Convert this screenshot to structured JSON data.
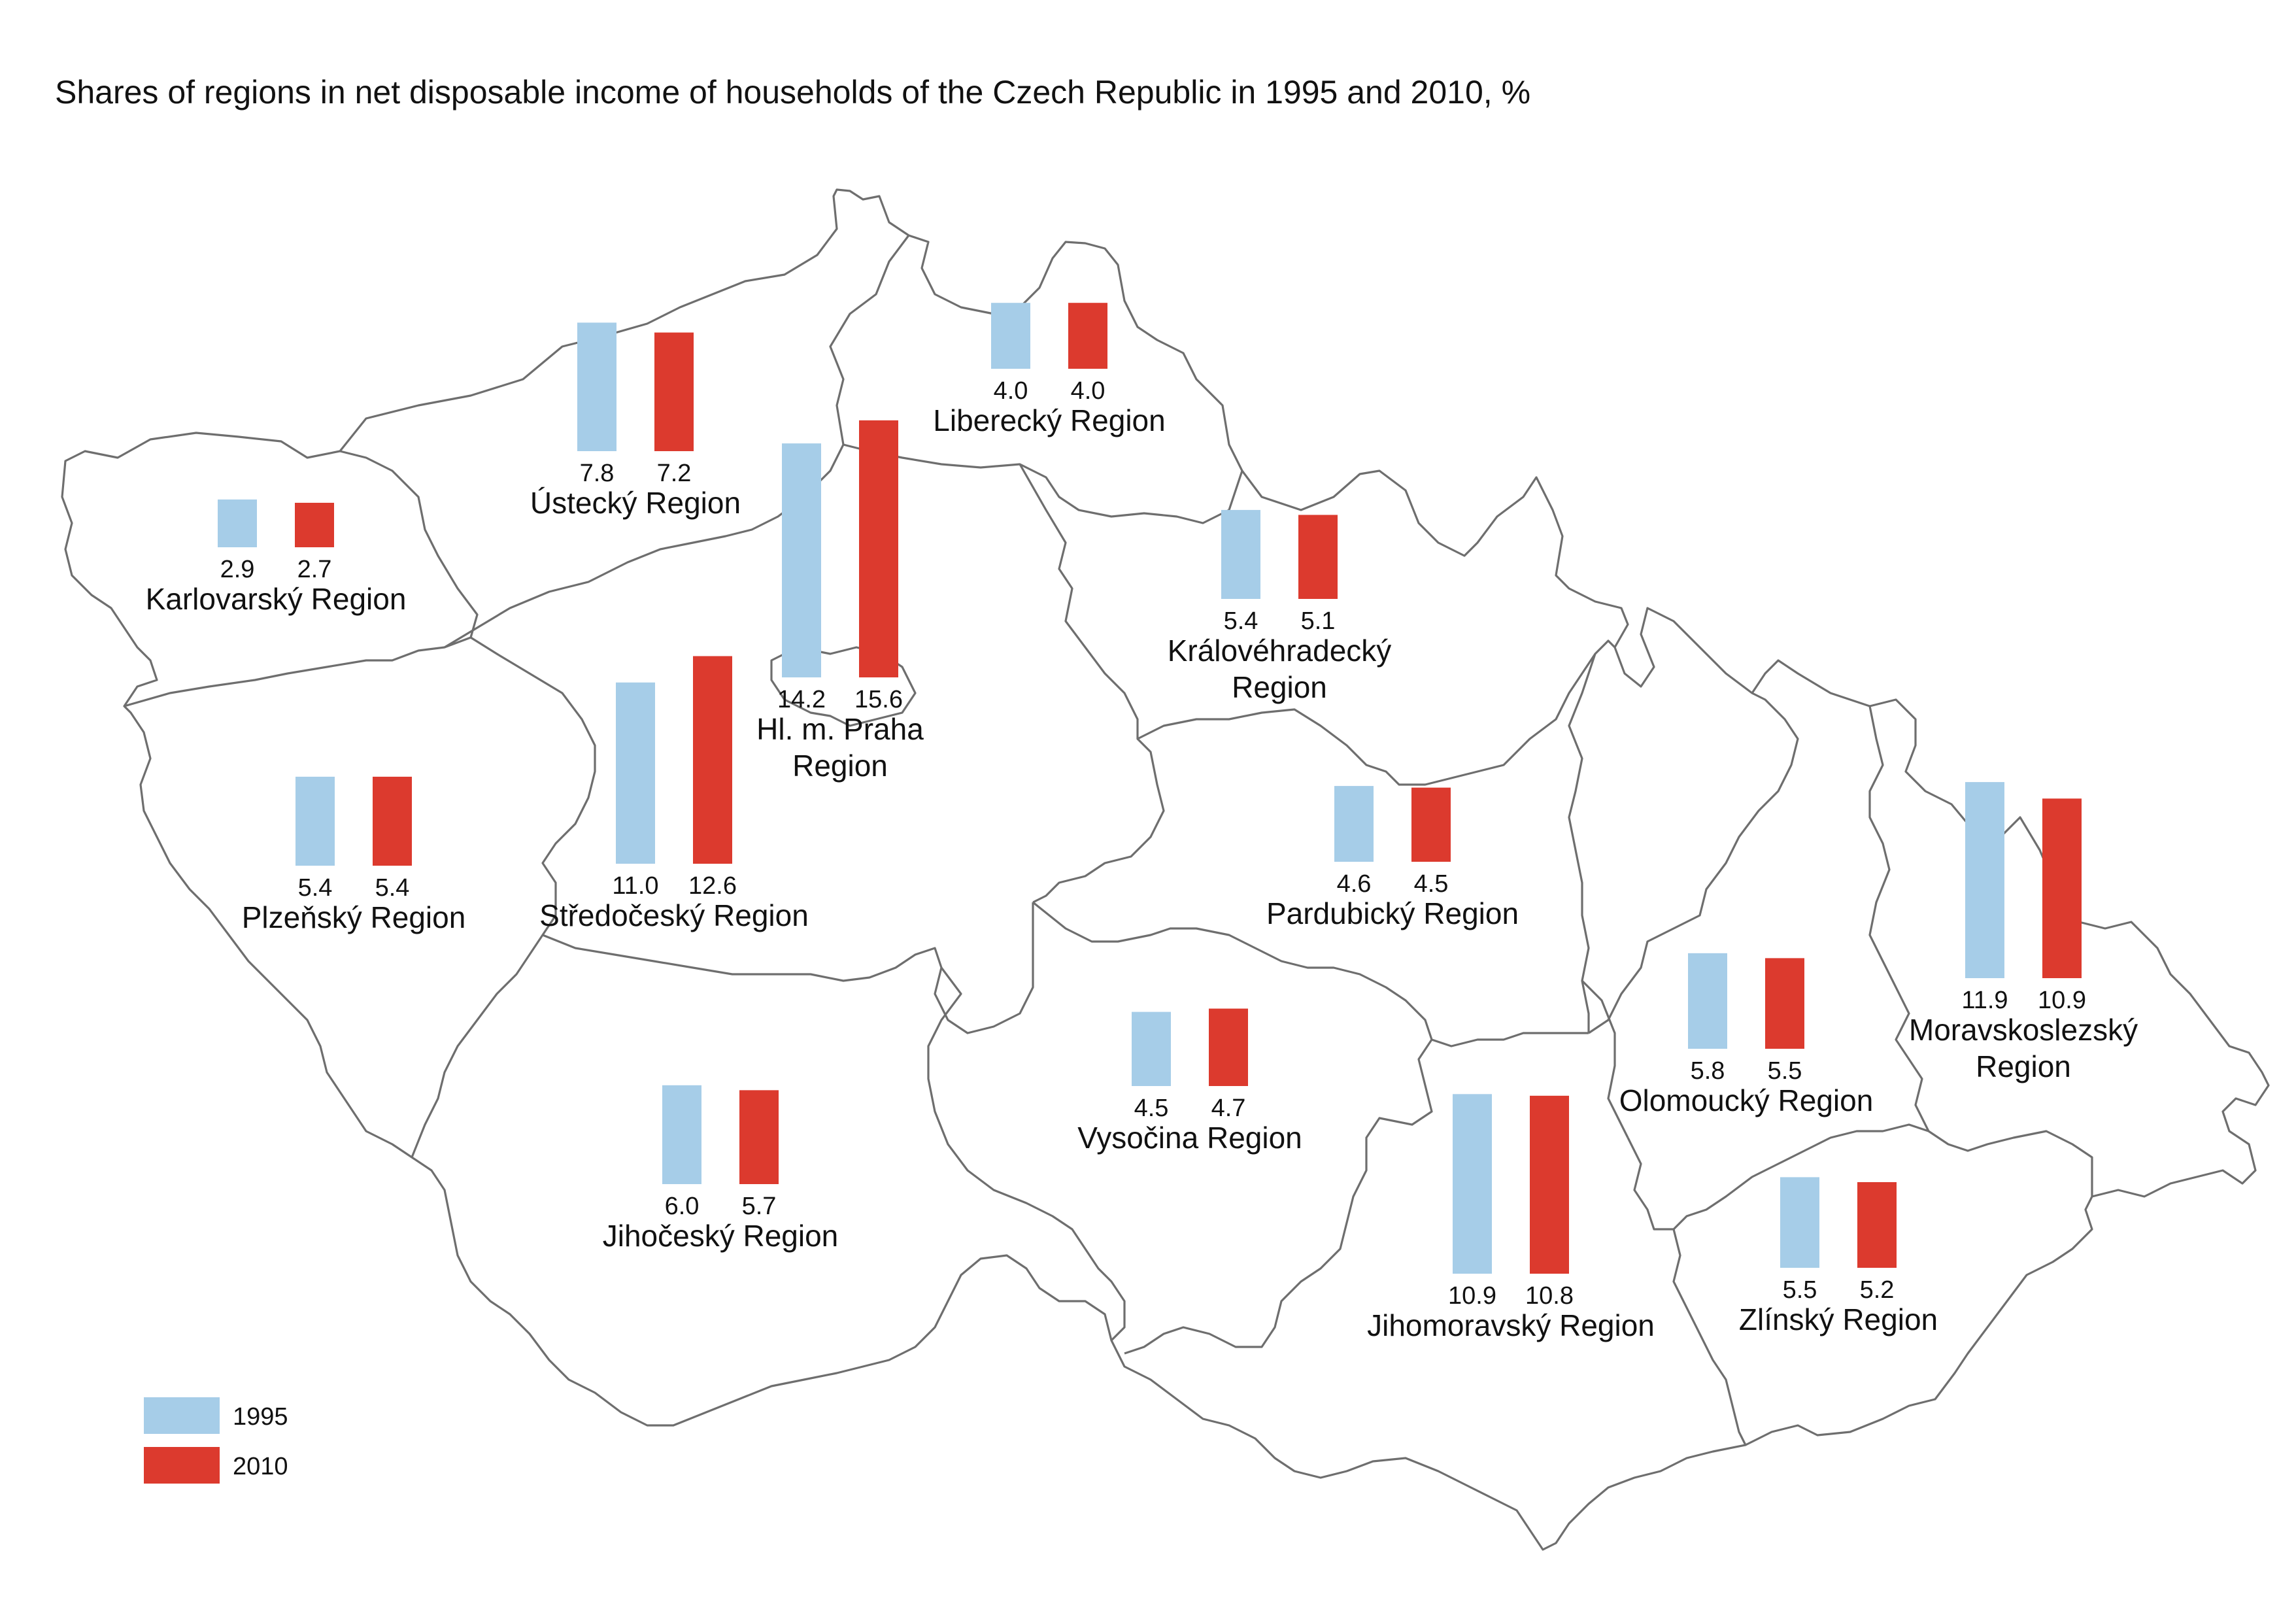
{
  "chart_data": {
    "type": "bar",
    "title": "Shares of regions in net disposable income of households of the Czech Republic in 1995 and 2010, %",
    "series_names": [
      "1995",
      "2010"
    ],
    "colors": {
      "1995": "#a6cde8",
      "2010": "#dc3a2e",
      "outline": "#6e6e6e",
      "text": "#111111"
    },
    "legend_placement": "bottom-left",
    "regions": [
      {
        "name": [
          "Karlovarský Region"
        ],
        "values": [
          2.9,
          2.7
        ]
      },
      {
        "name": [
          "Ústecký Region"
        ],
        "values": [
          7.8,
          7.2
        ]
      },
      {
        "name": [
          "Liberecký Region"
        ],
        "values": [
          4.0,
          4.0
        ]
      },
      {
        "name": [
          "Hl. m. Praha",
          "Region"
        ],
        "values": [
          14.2,
          15.6
        ]
      },
      {
        "name": [
          "Královéhradecký",
          "Region"
        ],
        "values": [
          5.4,
          5.1
        ]
      },
      {
        "name": [
          "Plzeňský Region"
        ],
        "values": [
          5.4,
          5.4
        ]
      },
      {
        "name": [
          "Středočeský Region"
        ],
        "values": [
          11.0,
          12.6
        ]
      },
      {
        "name": [
          "Pardubický Region"
        ],
        "values": [
          4.6,
          4.5
        ]
      },
      {
        "name": [
          "Moravskoslezský",
          "Region"
        ],
        "values": [
          11.9,
          10.9
        ]
      },
      {
        "name": [
          "Olomoucký Region"
        ],
        "values": [
          5.8,
          5.5
        ]
      },
      {
        "name": [
          "Vysočina Region"
        ],
        "values": [
          4.5,
          4.7
        ]
      },
      {
        "name": [
          "Jihočeský Region"
        ],
        "values": [
          6.0,
          5.7
        ]
      },
      {
        "name": [
          "Jihomoravský Region"
        ],
        "values": [
          10.9,
          10.8
        ]
      },
      {
        "name": [
          "Zlínský Region"
        ],
        "values": [
          5.5,
          5.2
        ]
      }
    ]
  }
}
